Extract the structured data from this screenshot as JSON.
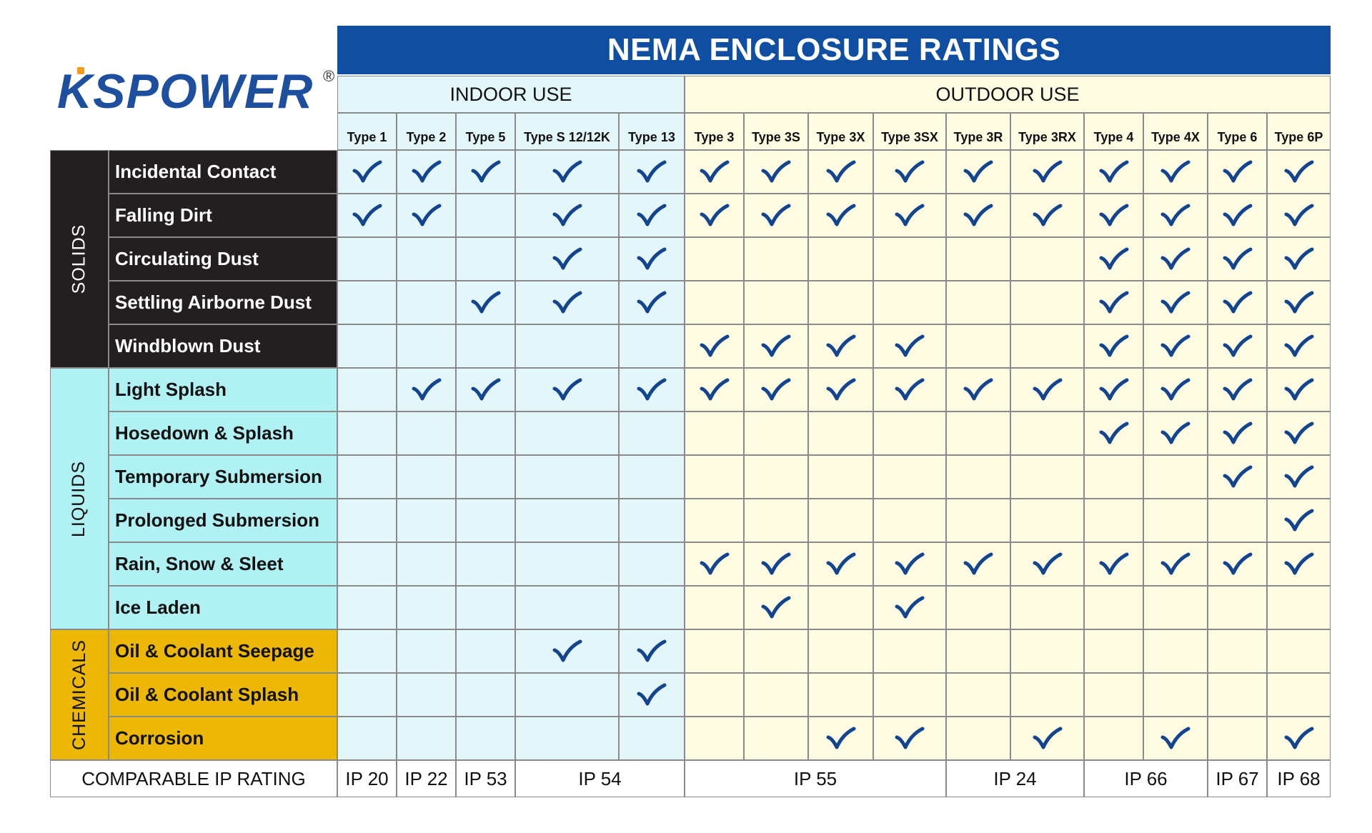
{
  "logo": {
    "text": "KSPOWER",
    "reg": "®"
  },
  "title": "NEMA ENCLOSURE RATINGS",
  "groups": {
    "indoor": "INDOOR USE",
    "outdoor": "OUTDOOR USE"
  },
  "types": [
    "Type 1",
    "Type 2",
    "Type 5",
    "Type S 12/12K",
    "Type 13",
    "Type 3",
    "Type 3S",
    "Type 3X",
    "Type 3SX",
    "Type 3R",
    "Type 3RX",
    "Type 4",
    "Type 4X",
    "Type 6",
    "Type 6P"
  ],
  "categories": [
    {
      "name": "SOLIDS",
      "rows": [
        {
          "label": "Incidental Contact",
          "checks": [
            1,
            1,
            1,
            1,
            1,
            1,
            1,
            1,
            1,
            1,
            1,
            1,
            1,
            1,
            1
          ]
        },
        {
          "label": "Falling Dirt",
          "checks": [
            1,
            1,
            0,
            1,
            1,
            1,
            1,
            1,
            1,
            1,
            1,
            1,
            1,
            1,
            1
          ]
        },
        {
          "label": "Circulating Dust",
          "checks": [
            0,
            0,
            0,
            1,
            1,
            0,
            0,
            0,
            0,
            0,
            0,
            1,
            1,
            1,
            1
          ]
        },
        {
          "label": "Settling Airborne Dust",
          "checks": [
            0,
            0,
            1,
            1,
            1,
            0,
            0,
            0,
            0,
            0,
            0,
            1,
            1,
            1,
            1
          ]
        },
        {
          "label": "Windblown Dust",
          "checks": [
            0,
            0,
            0,
            0,
            0,
            1,
            1,
            1,
            1,
            0,
            0,
            1,
            1,
            1,
            1
          ]
        }
      ]
    },
    {
      "name": "LIQUIDS",
      "rows": [
        {
          "label": "Light Splash",
          "checks": [
            0,
            1,
            1,
            1,
            1,
            1,
            1,
            1,
            1,
            1,
            1,
            1,
            1,
            1,
            1
          ]
        },
        {
          "label": "Hosedown & Splash",
          "checks": [
            0,
            0,
            0,
            0,
            0,
            0,
            0,
            0,
            0,
            0,
            0,
            1,
            1,
            1,
            1
          ]
        },
        {
          "label": "Temporary Submersion",
          "checks": [
            0,
            0,
            0,
            0,
            0,
            0,
            0,
            0,
            0,
            0,
            0,
            0,
            0,
            1,
            1
          ]
        },
        {
          "label": "Prolonged Submersion",
          "checks": [
            0,
            0,
            0,
            0,
            0,
            0,
            0,
            0,
            0,
            0,
            0,
            0,
            0,
            0,
            1
          ]
        },
        {
          "label": "Rain, Snow & Sleet",
          "checks": [
            0,
            0,
            0,
            0,
            0,
            1,
            1,
            1,
            1,
            1,
            1,
            1,
            1,
            1,
            1
          ]
        },
        {
          "label": "Ice Laden",
          "checks": [
            0,
            0,
            0,
            0,
            0,
            0,
            1,
            0,
            1,
            0,
            0,
            0,
            0,
            0,
            0
          ]
        }
      ]
    },
    {
      "name": "CHEMICALS",
      "rows": [
        {
          "label": "Oil & Coolant Seepage",
          "checks": [
            0,
            0,
            0,
            1,
            1,
            0,
            0,
            0,
            0,
            0,
            0,
            0,
            0,
            0,
            0
          ]
        },
        {
          "label": "Oil & Coolant Splash",
          "checks": [
            0,
            0,
            0,
            0,
            1,
            0,
            0,
            0,
            0,
            0,
            0,
            0,
            0,
            0,
            0
          ]
        },
        {
          "label": "Corrosion",
          "checks": [
            0,
            0,
            0,
            0,
            0,
            0,
            0,
            1,
            1,
            0,
            1,
            0,
            1,
            0,
            1
          ]
        }
      ]
    }
  ],
  "ip_rating": {
    "label": "COMPARABLE IP RATING",
    "cells": [
      {
        "text": "IP 20",
        "span": 1
      },
      {
        "text": "IP 22",
        "span": 1
      },
      {
        "text": "IP 53",
        "span": 1
      },
      {
        "text": "IP 54",
        "span": 2
      },
      {
        "text": "IP 55",
        "span": 4
      },
      {
        "text": "IP 24",
        "span": 2
      },
      {
        "text": "IP 66",
        "span": 2
      },
      {
        "text": "IP 67",
        "span": 1
      },
      {
        "text": "IP 68",
        "span": 1
      }
    ]
  },
  "colors": {
    "banner": "#0f4ea1",
    "indoor": "#e3f6f9",
    "outdoor": "#fdfbe2",
    "solids": "#231f20",
    "liquids": "#b0f1f4",
    "chemicals": "#edb705",
    "check": "#13448e"
  }
}
